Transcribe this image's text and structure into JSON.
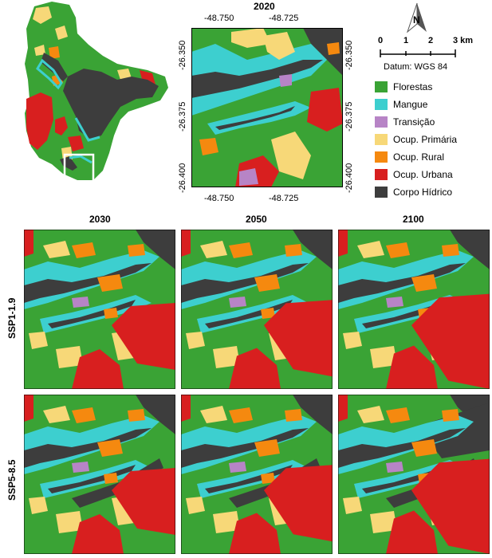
{
  "main_map": {
    "title": "2020",
    "x_ticks": [
      "-48.750",
      "-48.725"
    ],
    "y_ticks": [
      "-26.350",
      "-26.375",
      "-26.400"
    ]
  },
  "scale_bar": {
    "labels": [
      "0",
      "1",
      "2",
      "3 km"
    ],
    "datum": "Datum: WGS 84"
  },
  "north_arrow": {
    "label": "N",
    "icon": "north-arrow-icon"
  },
  "legend": [
    {
      "label": "Florestas",
      "color": "#3aa335"
    },
    {
      "label": "Mangue",
      "color": "#3dcfcf"
    },
    {
      "label": "Transição",
      "color": "#b784c6"
    },
    {
      "label": "Ocup. Primária",
      "color": "#f7d878"
    },
    {
      "label": "Ocup. Rural",
      "color": "#f5890f"
    },
    {
      "label": "Ocup. Urbana",
      "color": "#d81f1f"
    },
    {
      "label": "Corpo Hídrico",
      "color": "#3d3d3d"
    }
  ],
  "scenario_grid": {
    "columns": [
      "2030",
      "2050",
      "2100"
    ],
    "rows": [
      "SSP1-1.9",
      "SSP5-8.5"
    ]
  }
}
